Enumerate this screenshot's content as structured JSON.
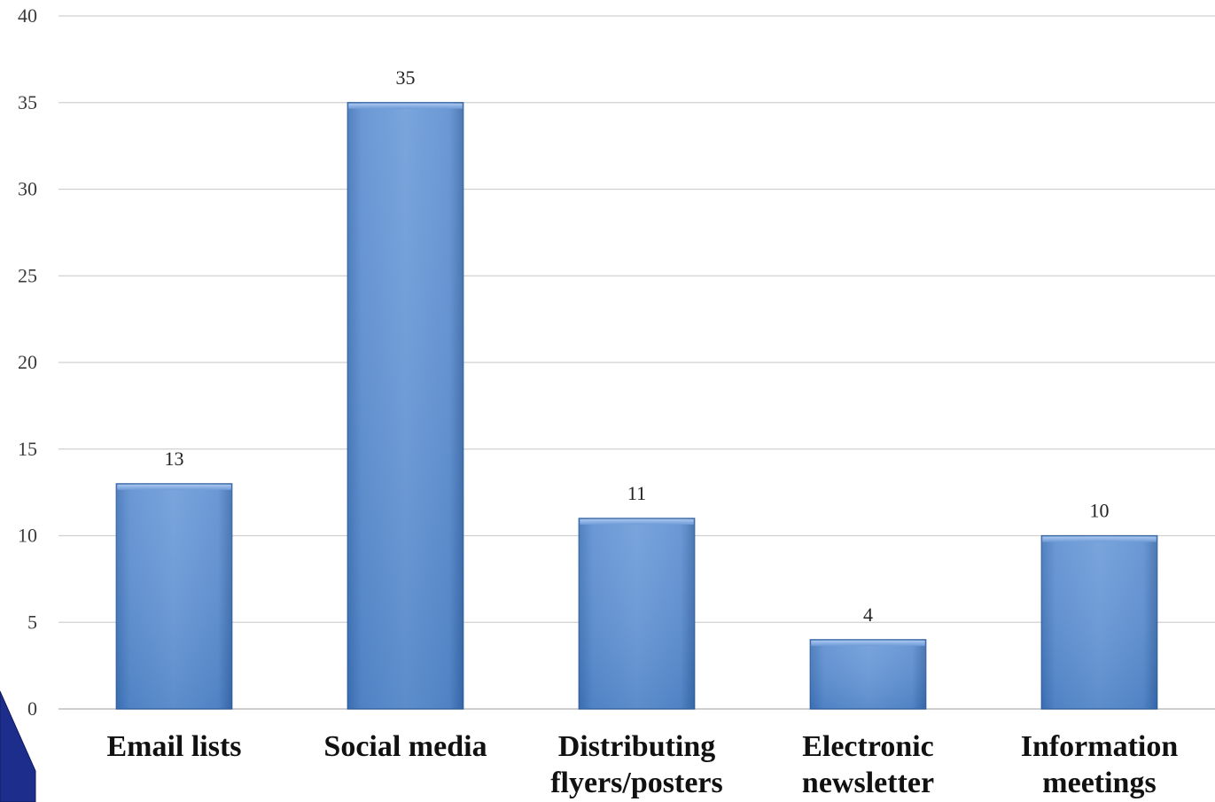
{
  "chart_data": {
    "type": "bar",
    "title": "",
    "xlabel": "",
    "ylabel": "",
    "categories": [
      [
        "Email lists"
      ],
      [
        "Social media"
      ],
      [
        "Distributing",
        "flyers/posters"
      ],
      [
        "Electronic",
        "newsletter"
      ],
      [
        "Information",
        "meetings"
      ]
    ],
    "values": [
      13,
      35,
      11,
      4,
      10
    ],
    "ylim": [
      0,
      40
    ],
    "yticks": [
      0,
      5,
      10,
      15,
      20,
      25,
      30,
      35,
      40
    ],
    "grid": true,
    "legend": "none",
    "colors": {
      "bar_light": "#7aa5dc",
      "bar_mid": "#5a8ccf",
      "bar_dark": "#3f73b8",
      "bar_edge": "#2e5f9e",
      "corner_accent": "#1c2d8c"
    }
  }
}
